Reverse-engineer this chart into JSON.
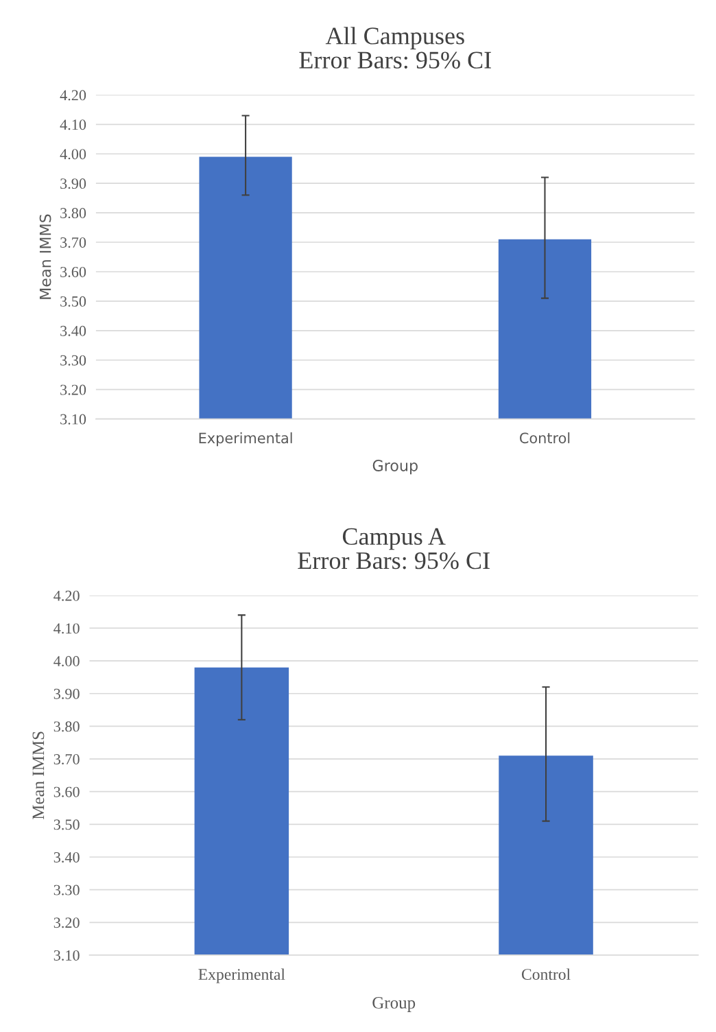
{
  "chart_data": [
    {
      "type": "bar",
      "title": "All Campuses\nError Bars: 95% CI",
      "xlabel": "Group",
      "ylabel": "Mean IMMS",
      "categories": [
        "Experimental",
        "Control"
      ],
      "values": [
        3.99,
        3.71
      ],
      "errors": [
        [
          3.86,
          4.13
        ],
        [
          3.51,
          3.92
        ]
      ],
      "color": "#4472c4",
      "ylim": [
        3.1,
        4.2
      ],
      "yticks": [
        {
          "value": 3.1,
          "label": "3.10"
        },
        {
          "value": 3.2,
          "label": "3.20"
        },
        {
          "value": 3.3,
          "label": "3.30"
        },
        {
          "value": 3.4,
          "label": "3.40"
        },
        {
          "value": 3.5,
          "label": "3.50"
        },
        {
          "value": 3.6,
          "label": "3.60"
        },
        {
          "value": 3.7,
          "label": "3.70"
        },
        {
          "value": 3.8,
          "label": "3.80"
        },
        {
          "value": 3.9,
          "label": "3.90"
        },
        {
          "value": 4.0,
          "label": "4.00"
        },
        {
          "value": 4.1,
          "label": "4.10"
        },
        {
          "value": 4.2,
          "label": "4.20"
        }
      ],
      "grid": "y"
    },
    {
      "type": "bar",
      "title": "Campus A\nError Bars: 95% CI",
      "xlabel": "Group",
      "ylabel": "Mean IMMS",
      "categories": [
        "Experimental",
        "Control"
      ],
      "values": [
        3.98,
        3.71
      ],
      "errors": [
        [
          3.82,
          4.14
        ],
        [
          3.51,
          3.92
        ]
      ],
      "color": "#4472c4",
      "ylim": [
        3.1,
        4.2
      ],
      "yticks": [
        {
          "value": 3.1,
          "label": "3.10"
        },
        {
          "value": 3.2,
          "label": "3.20"
        },
        {
          "value": 3.3,
          "label": "3.30"
        },
        {
          "value": 3.4,
          "label": "3.40"
        },
        {
          "value": 3.5,
          "label": "3.50"
        },
        {
          "value": 3.6,
          "label": "3.60"
        },
        {
          "value": 3.7,
          "label": "3.70"
        },
        {
          "value": 3.8,
          "label": "3.80"
        },
        {
          "value": 3.9,
          "label": "3.90"
        },
        {
          "value": 4.0,
          "label": "4.00"
        },
        {
          "value": 4.1,
          "label": "4.10"
        },
        {
          "value": 4.2,
          "label": "4.20"
        }
      ],
      "grid": "y"
    }
  ]
}
